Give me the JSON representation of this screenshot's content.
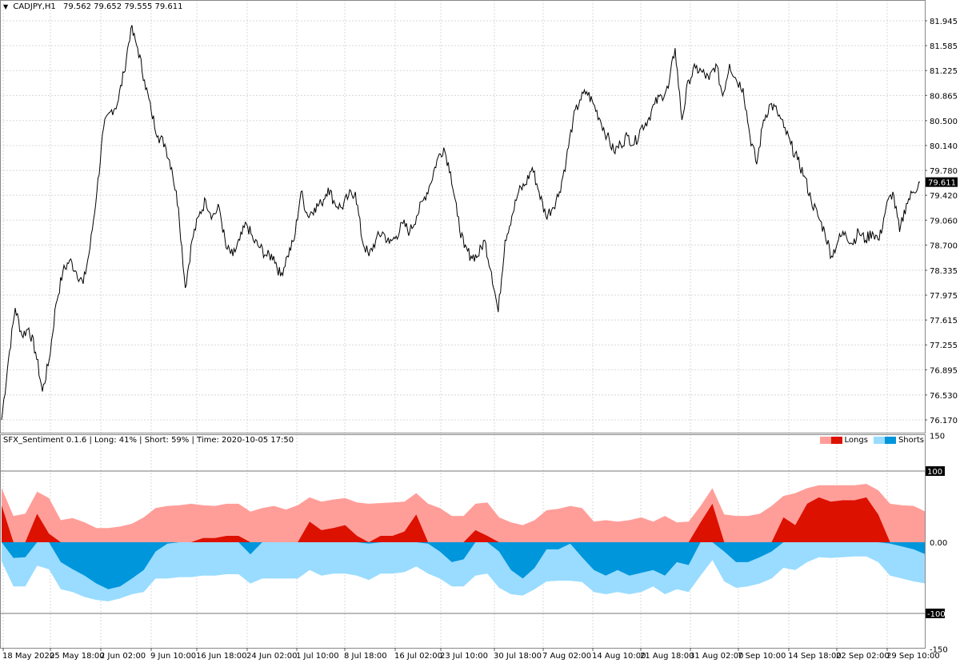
{
  "header": {
    "symbol": "CADJPY,H1",
    "ohlc": "79.562 79.652 79.555 79.611",
    "menu_icon": "triangle-down-icon"
  },
  "indicator": {
    "title": "SFX_Sentiment 0.1.6 | Long: 41% | Short: 59% | Time: 2020-10-05 17:50",
    "legend_longs": "Longs",
    "legend_shorts": "Shorts",
    "axis_labels": [
      "150",
      "100",
      "0.00",
      "-100",
      "-150"
    ],
    "axis_values": [
      150,
      100,
      0,
      -100,
      -150
    ],
    "highlighted_levels": [
      "100",
      "-100"
    ]
  },
  "colors": {
    "long_total": "#ff9e99",
    "long_net": "#dd1100",
    "short_total": "#99dcff",
    "short_net": "#0096dc",
    "price_line": "#000000",
    "grid": "#d8d8d8"
  },
  "price_axis": {
    "ticks": [
      "81.945",
      "81.585",
      "81.225",
      "80.865",
      "80.500",
      "80.140",
      "79.780",
      "79.420",
      "79.060",
      "78.700",
      "78.335",
      "77.975",
      "77.615",
      "77.255",
      "76.895",
      "76.530",
      "76.170"
    ],
    "current_price": "79.611"
  },
  "time_axis": {
    "labels": [
      "18 May 2020",
      "25 May 18:00",
      "2 Jun 02:00",
      "9 Jun 10:00",
      "16 Jun 18:00",
      "24 Jun 02:00",
      "1 Jul 10:00",
      "8 Jul 18:00",
      "16 Jul 02:00",
      "23 Jul 10:00",
      "30 Jul 18:00",
      "7 Aug 02:00",
      "14 Aug 10:00",
      "21 Aug 18:00",
      "31 Aug 02:00",
      "7 Sep 10:00",
      "14 Sep 18:00",
      "22 Sep 02:00",
      "29 Sep 10:00"
    ]
  },
  "chart_data": [
    {
      "type": "line",
      "title": "CADJPY,H1",
      "ylim": [
        76.17,
        81.945
      ],
      "grid": true,
      "values": [
        76.17,
        77.04,
        77.79,
        77.39,
        77.5,
        77.15,
        76.58,
        77.04,
        77.85,
        78.31,
        78.48,
        78.31,
        78.14,
        78.66,
        79.47,
        80.4,
        80.63,
        80.74,
        81.2,
        81.84,
        81.55,
        81.09,
        80.63,
        80.28,
        80.16,
        79.82,
        79.24,
        78.08,
        78.77,
        79.12,
        79.35,
        79.12,
        79.24,
        78.66,
        78.54,
        78.77,
        79.01,
        78.77,
        78.66,
        78.54,
        78.54,
        78.25,
        78.54,
        78.77,
        79.47,
        79.12,
        79.24,
        79.3,
        79.53,
        79.3,
        79.24,
        79.41,
        79.47,
        78.77,
        78.54,
        78.77,
        78.89,
        78.72,
        78.83,
        79.01,
        78.89,
        79.12,
        79.35,
        79.58,
        79.93,
        80.11,
        79.76,
        79.12,
        78.66,
        78.54,
        78.54,
        78.77,
        78.31,
        77.73,
        78.77,
        79.12,
        79.47,
        79.58,
        79.82,
        79.47,
        79.12,
        79.24,
        79.47,
        79.93,
        80.51,
        80.8,
        80.92,
        80.74,
        80.51,
        80.28,
        80.05,
        80.16,
        80.28,
        80.16,
        80.4,
        80.51,
        80.74,
        80.86,
        80.97,
        81.55,
        80.51,
        81.09,
        81.26,
        81.2,
        81.09,
        81.32,
        80.86,
        81.32,
        81.09,
        80.97,
        80.28,
        79.87,
        80.51,
        80.74,
        80.63,
        80.4,
        80.16,
        79.93,
        79.7,
        79.35,
        79.12,
        78.89,
        78.54,
        78.77,
        78.89,
        78.72,
        78.89,
        78.77,
        78.89,
        78.77,
        79.24,
        79.47,
        78.89,
        79.3,
        79.47,
        79.61
      ]
    },
    {
      "type": "area",
      "title": "SFX_Sentiment 0.1.6",
      "ylim": [
        -150,
        150
      ],
      "legend": "top-right",
      "series_names": [
        "Longs",
        "Shorts"
      ],
      "columns": [
        "long_total",
        "long_net",
        "short_total",
        "short_net"
      ],
      "values": [
        [
          76,
          52,
          -27,
          0
        ],
        [
          37,
          0,
          -62,
          -22
        ],
        [
          40,
          0,
          -62,
          -21
        ],
        [
          71,
          40,
          -33,
          0
        ],
        [
          62,
          12,
          -38,
          0
        ],
        [
          31,
          0,
          -66,
          -28
        ],
        [
          34,
          0,
          -70,
          -38
        ],
        [
          28,
          0,
          -77,
          -47
        ],
        [
          20,
          0,
          -81,
          -58
        ],
        [
          20,
          0,
          -83,
          -66
        ],
        [
          22,
          0,
          -79,
          -62
        ],
        [
          26,
          0,
          -73,
          -51
        ],
        [
          35,
          0,
          -70,
          -39
        ],
        [
          48,
          0,
          -51,
          -13
        ],
        [
          51,
          0,
          -51,
          -2
        ],
        [
          52,
          0,
          -49,
          0
        ],
        [
          54,
          0,
          -49,
          0
        ],
        [
          52,
          6,
          -47,
          0
        ],
        [
          51,
          6,
          -47,
          0
        ],
        [
          54,
          9,
          -45,
          0
        ],
        [
          54,
          9,
          -45,
          0
        ],
        [
          43,
          0,
          -58,
          -17
        ],
        [
          48,
          0,
          -51,
          0
        ],
        [
          51,
          0,
          -51,
          0
        ],
        [
          46,
          0,
          -51,
          0
        ],
        [
          52,
          0,
          -51,
          0
        ],
        [
          63,
          29,
          -39,
          0
        ],
        [
          57,
          17,
          -47,
          0
        ],
        [
          60,
          20,
          -44,
          0
        ],
        [
          62,
          24,
          -44,
          0
        ],
        [
          56,
          9,
          -47,
          0
        ],
        [
          54,
          0,
          -53,
          -2
        ],
        [
          55,
          9,
          -44,
          0
        ],
        [
          56,
          9,
          -44,
          0
        ],
        [
          57,
          15,
          -42,
          0
        ],
        [
          69,
          39,
          -34,
          0
        ],
        [
          54,
          0,
          -44,
          -2
        ],
        [
          48,
          0,
          -51,
          -13
        ],
        [
          37,
          0,
          -62,
          -28
        ],
        [
          37,
          0,
          -62,
          -24
        ],
        [
          54,
          17,
          -47,
          0
        ],
        [
          56,
          9,
          -44,
          0
        ],
        [
          35,
          0,
          -64,
          -13
        ],
        [
          28,
          0,
          -73,
          -39
        ],
        [
          24,
          0,
          -75,
          -51
        ],
        [
          31,
          0,
          -66,
          -36
        ],
        [
          45,
          0,
          -55,
          -10
        ],
        [
          47,
          0,
          -54,
          -10
        ],
        [
          51,
          0,
          -54,
          -2
        ],
        [
          48,
          0,
          -56,
          -21
        ],
        [
          29,
          0,
          -70,
          -39
        ],
        [
          31,
          0,
          -73,
          -47
        ],
        [
          29,
          0,
          -70,
          -39
        ],
        [
          31,
          0,
          -73,
          -47
        ],
        [
          35,
          0,
          -70,
          -43
        ],
        [
          29,
          0,
          -62,
          -39
        ],
        [
          37,
          0,
          -73,
          -47
        ],
        [
          28,
          0,
          -66,
          -28
        ],
        [
          29,
          0,
          -70,
          -32
        ],
        [
          51,
          28,
          -47,
          0
        ],
        [
          76,
          54,
          -25,
          0
        ],
        [
          39,
          0,
          -55,
          -13
        ],
        [
          37,
          0,
          -64,
          -28
        ],
        [
          37,
          0,
          -62,
          -28
        ],
        [
          40,
          0,
          -58,
          -21
        ],
        [
          51,
          0,
          -51,
          -13
        ],
        [
          65,
          35,
          -36,
          0
        ],
        [
          69,
          24,
          -39,
          0
        ],
        [
          76,
          54,
          -28,
          0
        ],
        [
          80,
          63,
          -21,
          0
        ],
        [
          80,
          57,
          -22,
          0
        ],
        [
          80,
          59,
          -21,
          0
        ],
        [
          80,
          59,
          -20,
          0
        ],
        [
          82,
          63,
          -20,
          0
        ],
        [
          73,
          39,
          -28,
          0
        ],
        [
          54,
          0,
          -47,
          -2
        ],
        [
          52,
          0,
          -51,
          -6
        ],
        [
          51,
          0,
          -55,
          -10
        ],
        [
          43,
          0,
          -58,
          -17
        ]
      ]
    }
  ]
}
